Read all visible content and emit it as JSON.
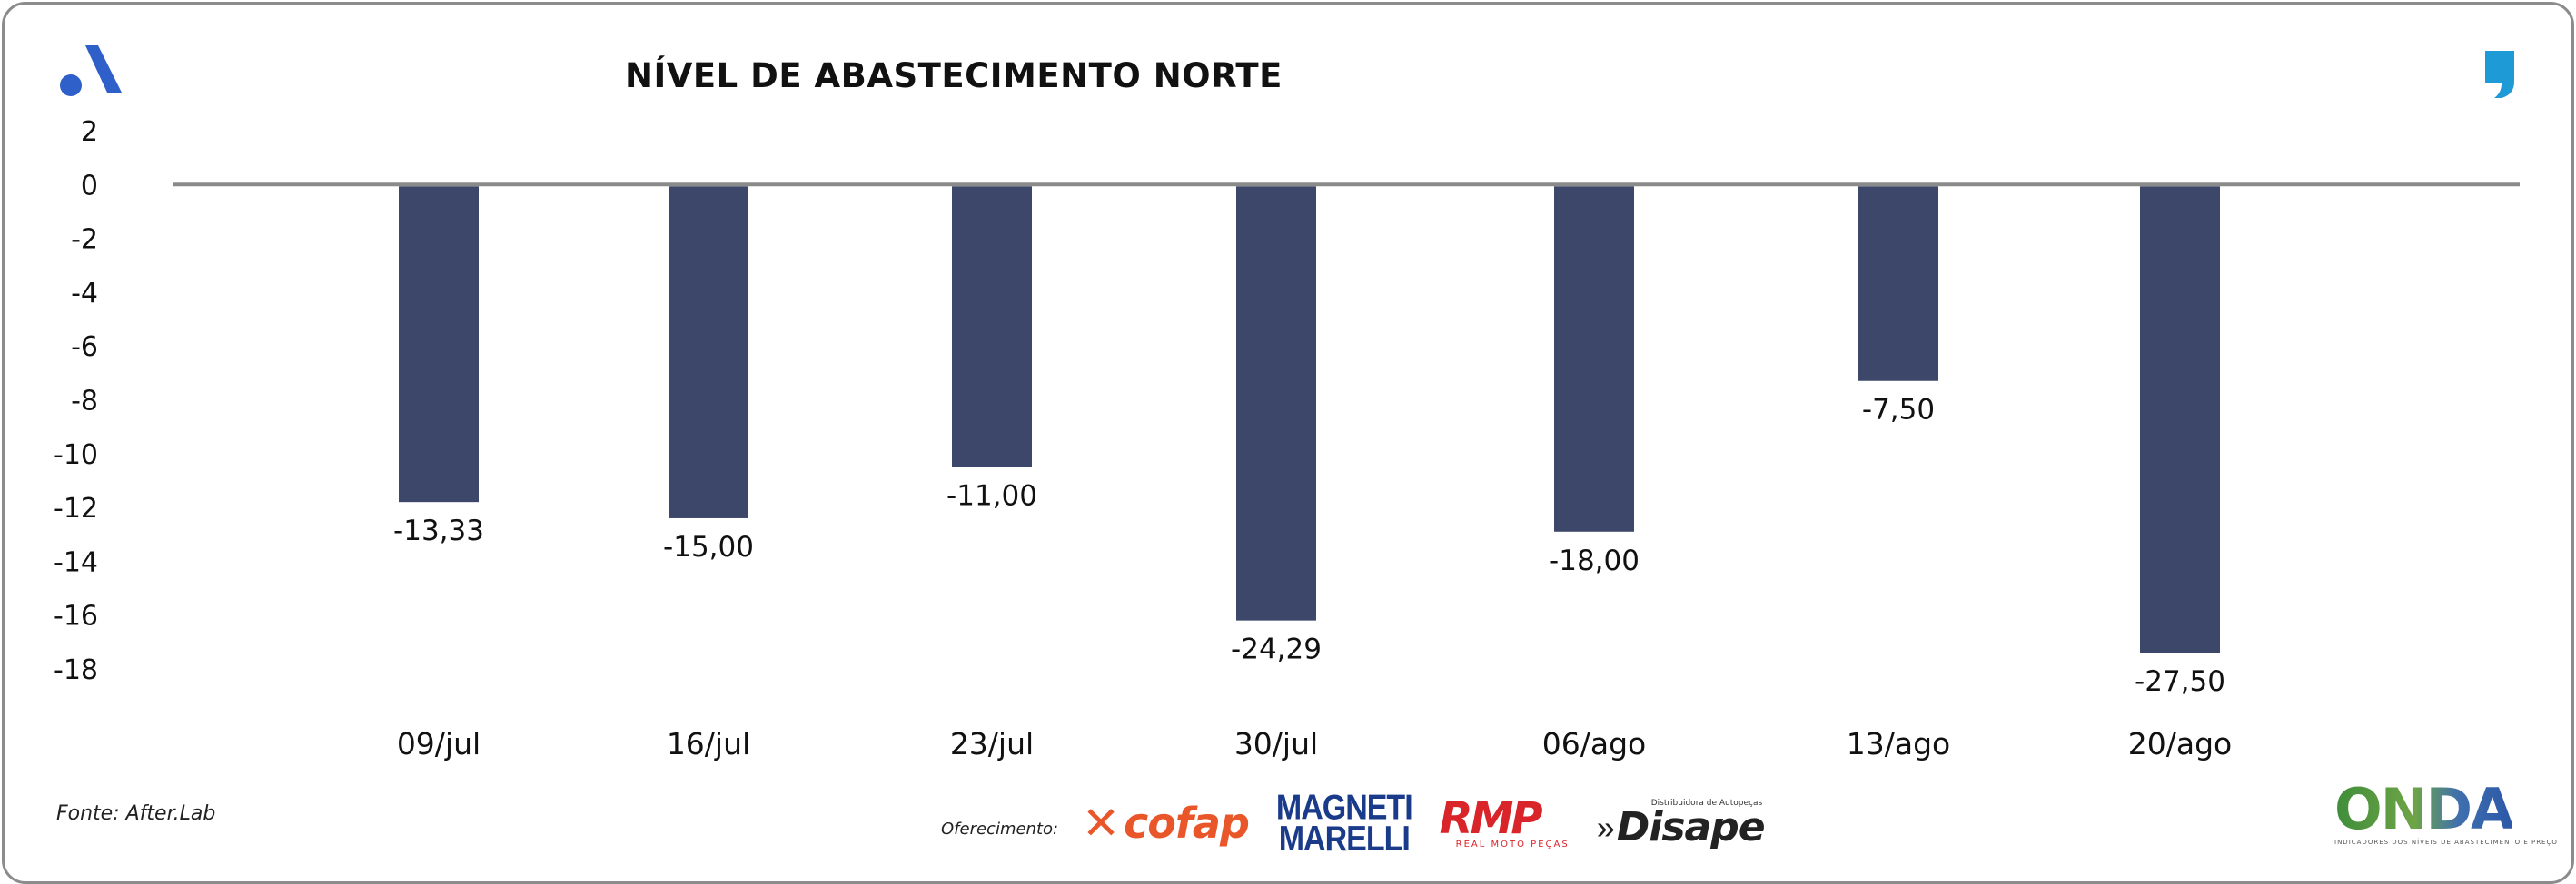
{
  "header": {
    "title": "NÍVEL DE ABASTECIMENTO NORTE",
    "left_logo_icon": "a-logo-icon",
    "right_logo_icon": "quote-mark-icon"
  },
  "chart_data": {
    "type": "bar",
    "title": "NÍVEL DE ABASTECIMENTO NORTE",
    "xlabel": "",
    "ylabel": "",
    "ylim": [
      -18,
      2
    ],
    "y_ticks": [
      "2",
      "0",
      "-2",
      "-4",
      "-6",
      "-8",
      "-10",
      "-12",
      "-14",
      "-16",
      "-18"
    ],
    "y_tick_values": [
      2,
      0,
      -2,
      -4,
      -6,
      -8,
      -10,
      -12,
      -14,
      -16,
      -18
    ],
    "grid": false,
    "categories": [
      "09/jul",
      "16/jul",
      "23/jul",
      "30/jul",
      "06/ago",
      "13/ago",
      "20/ago"
    ],
    "values": [
      -13.33,
      -15.0,
      -11.0,
      -24.29,
      -18.0,
      -7.5,
      -27.5
    ],
    "bar_depths": [
      -11.8,
      -12.4,
      -10.5,
      -16.2,
      -12.9,
      -7.3,
      -17.4
    ],
    "data_labels": [
      "-13,33",
      "-15,00",
      "-11,00",
      "-24,29",
      "-18,00",
      "-7,50",
      "-27,50"
    ],
    "bar_color": "#3d4769",
    "axis_color": "#8a8a8a"
  },
  "footer": {
    "source": "Fonte: After.Lab",
    "sponsor_label": "Oferecimento:",
    "sponsors": {
      "cofap": "cofap",
      "magneti_line1": "MAGNETI",
      "magneti_line2": "MARELLI",
      "rmp": "RMP",
      "rmp_sub": "REAL MOTO PEÇAS",
      "disape": "Disape",
      "disape_sub": "Distribuidora de Autopeças"
    },
    "onda": "ONDA",
    "onda_sub": "INDICADORES DOS NÍVEIS DE ABASTECIMENTO E PREÇO"
  }
}
